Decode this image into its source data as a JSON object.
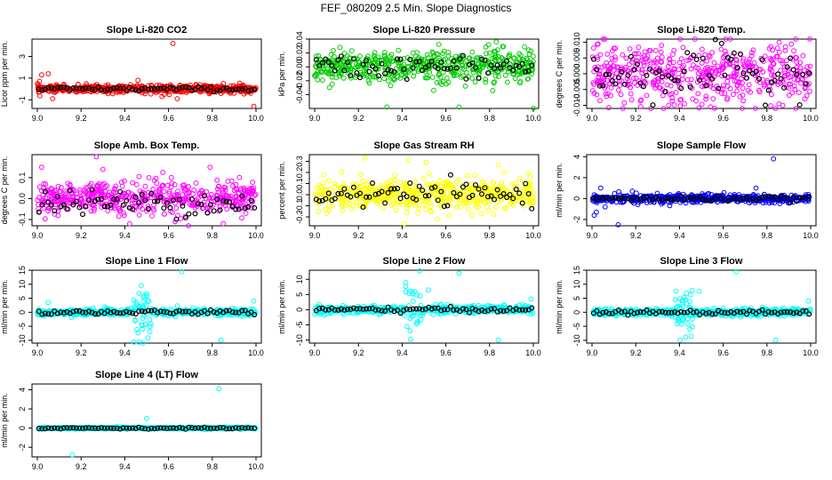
{
  "title": "FEF_080209  2.5 Min. Slope Diagnostics",
  "chart_data": [
    {
      "type": "scatter",
      "title": "Slope Li-820 CO2",
      "ylabel": "Licor ppm per min.",
      "xlim": [
        9.0,
        10.0
      ],
      "ylim": [
        -1.8,
        4.6
      ],
      "xticks": [
        "9.0",
        "9.2",
        "9.4",
        "9.6",
        "9.8",
        "10.0"
      ],
      "yticks": [
        "-1",
        "1",
        "3"
      ],
      "series": [
        {
          "name": "slope",
          "color": "#ff0000",
          "center": 0,
          "spread": 0.18
        },
        {
          "name": "selected",
          "color": "#000000",
          "center": 0,
          "spread": 0.1
        }
      ],
      "outliers": [
        [
          9.01,
          0.7
        ],
        [
          9.02,
          1.3
        ],
        [
          9.05,
          1.4
        ],
        [
          9.07,
          -0.9
        ],
        [
          9.46,
          0.8
        ],
        [
          9.57,
          -0.7
        ],
        [
          9.58,
          -0.5
        ],
        [
          9.62,
          4.2
        ],
        [
          9.64,
          -0.9
        ],
        [
          9.99,
          -1.6
        ]
      ]
    },
    {
      "type": "scatter",
      "title": "Slope Li-820 Pressure",
      "ylabel": "kPa per min.",
      "xlim": [
        9.0,
        10.0
      ],
      "ylim": [
        -0.06,
        0.04
      ],
      "xticks": [
        "9.0",
        "9.2",
        "9.4",
        "9.6",
        "9.8",
        "10.0"
      ],
      "yticks": [
        "-0.04",
        "-0.02",
        "0.00",
        "0.02",
        "0.04"
      ],
      "series": [
        {
          "name": "slope",
          "color": "#00cc00",
          "center": 0.0,
          "spread": 0.012
        },
        {
          "name": "selected",
          "color": "#000000",
          "center": 0.0,
          "spread": 0.008
        }
      ],
      "outliers": [
        [
          9.33,
          -0.058
        ],
        [
          9.66,
          -0.058
        ],
        [
          9.83,
          0.036
        ],
        [
          10.0,
          -0.06
        ]
      ]
    },
    {
      "type": "scatter",
      "title": "Slope Li-820 Temp.",
      "ylabel": "degrees C per min.",
      "xlim": [
        9.0,
        10.0
      ],
      "ylim": [
        -0.011,
        0.011
      ],
      "xticks": [
        "9.0",
        "9.2",
        "9.4",
        "9.6",
        "9.8",
        "10.0"
      ],
      "yticks": [
        "-0.010",
        "-0.005",
        "0.000",
        "0.005",
        "0.010"
      ],
      "series": [
        {
          "name": "slope",
          "color": "#ff00ff",
          "center": 0.0,
          "spread": 0.005
        },
        {
          "name": "selected",
          "color": "#000000",
          "center": 0.0,
          "spread": 0.004
        }
      ],
      "outliers": []
    },
    {
      "type": "scatter",
      "title": "Slope Amb. Box Temp.",
      "ylabel": "degrees C per min.",
      "xlim": [
        9.0,
        10.0
      ],
      "ylim": [
        -0.13,
        0.21
      ],
      "xticks": [
        "9.0",
        "9.2",
        "9.4",
        "9.6",
        "9.8",
        "10.0"
      ],
      "yticks": [
        "-0.1",
        "0.0",
        "0.1"
      ],
      "series": [
        {
          "name": "slope",
          "color": "#ff00ff",
          "center": 0.0,
          "spread": 0.04
        },
        {
          "name": "selected",
          "color": "#000000",
          "center": -0.02,
          "spread": 0.03
        }
      ],
      "outliers": [
        [
          9.02,
          0.15
        ],
        [
          9.27,
          0.2
        ],
        [
          9.3,
          0.14
        ],
        [
          9.63,
          -0.11
        ],
        [
          9.79,
          0.15
        ],
        [
          9.85,
          -0.12
        ]
      ]
    },
    {
      "type": "scatter",
      "title": "Slope Gas Stream RH",
      "ylabel": "percent per min.",
      "xlim": [
        9.0,
        10.0
      ],
      "ylim": [
        -0.28,
        0.36
      ],
      "xticks": [
        "9.0",
        "9.2",
        "9.4",
        "9.6",
        "9.8",
        "10.0"
      ],
      "yticks": [
        "-0.2",
        "-0.1",
        "0.0",
        "0.1",
        "0.2",
        "0.3"
      ],
      "series": [
        {
          "name": "slope",
          "color": "#ffff00",
          "center": 0.0,
          "spread": 0.07
        },
        {
          "name": "selected",
          "color": "#000000",
          "center": 0.0,
          "spread": 0.05
        }
      ],
      "outliers": [
        [
          9.23,
          0.33
        ],
        [
          9.43,
          0.31
        ],
        [
          9.51,
          0.29
        ],
        [
          9.41,
          -0.26
        ],
        [
          9.56,
          -0.22
        ]
      ]
    },
    {
      "type": "scatter",
      "title": "Slope Sample Flow",
      "ylabel": "ml/min per min.",
      "xlim": [
        9.0,
        10.0
      ],
      "ylim": [
        -2.6,
        4.2
      ],
      "xticks": [
        "9.0",
        "9.2",
        "9.4",
        "9.6",
        "9.8",
        "10.0"
      ],
      "yticks": [
        "-2",
        "0",
        "2",
        "4"
      ],
      "series": [
        {
          "name": "slope",
          "color": "#0000ff",
          "center": 0.0,
          "spread": 0.2
        },
        {
          "name": "selected",
          "color": "#000000",
          "center": 0.0,
          "spread": 0.12
        }
      ],
      "outliers": [
        [
          9.01,
          -1.6
        ],
        [
          9.02,
          -1.3
        ],
        [
          9.04,
          1.0
        ],
        [
          9.06,
          -0.8
        ],
        [
          9.12,
          -2.5
        ],
        [
          9.75,
          1.0
        ],
        [
          9.83,
          3.8
        ]
      ]
    },
    {
      "type": "scatter",
      "title": "Slope Line 1 Flow",
      "ylabel": "ml/min per min.",
      "xlim": [
        9.0,
        10.0
      ],
      "ylim": [
        -11,
        15
      ],
      "xticks": [
        "9.0",
        "9.2",
        "9.4",
        "9.6",
        "9.8",
        "10.0"
      ],
      "yticks": [
        "-10",
        "-5",
        "0",
        "5",
        "10",
        "15"
      ],
      "series": [
        {
          "name": "slope",
          "color": "#00ffff",
          "center": 0.0,
          "spread": 0.6
        },
        {
          "name": "selected",
          "color": "#000000",
          "center": 0.0,
          "spread": 0.4
        }
      ],
      "burst": {
        "x": 9.48,
        "width": 0.04,
        "spread": 4.5
      },
      "outliers": [
        [
          9.05,
          3.5
        ],
        [
          9.66,
          14.5
        ],
        [
          9.84,
          -10.0
        ],
        [
          9.99,
          4.0
        ]
      ]
    },
    {
      "type": "scatter",
      "title": "Slope Line 2 Flow",
      "ylabel": "ml/min per min.",
      "xlim": [
        9.0,
        10.0
      ],
      "ylim": [
        -11,
        13
      ],
      "xticks": [
        "9.0",
        "9.2",
        "9.4",
        "9.6",
        "9.8",
        "10.0"
      ],
      "yticks": [
        "-10",
        "-5",
        "0",
        "5",
        "10"
      ],
      "series": [
        {
          "name": "slope",
          "color": "#00ffff",
          "center": 0.0,
          "spread": 0.6
        },
        {
          "name": "selected",
          "color": "#000000",
          "center": 0.0,
          "spread": 0.4
        }
      ],
      "burst": {
        "x": 9.45,
        "width": 0.04,
        "spread": 4.0
      },
      "outliers": [
        [
          9.52,
          6.5
        ],
        [
          9.66,
          12.0
        ],
        [
          9.84,
          -10.0
        ],
        [
          9.99,
          3.5
        ]
      ]
    },
    {
      "type": "scatter",
      "title": "Slope Line 3 Flow",
      "ylabel": "ml/min per min.",
      "xlim": [
        9.0,
        10.0
      ],
      "ylim": [
        -11,
        15
      ],
      "xticks": [
        "9.0",
        "9.2",
        "9.4",
        "9.6",
        "9.8",
        "10.0"
      ],
      "yticks": [
        "-10",
        "-5",
        "0",
        "5",
        "10",
        "15"
      ],
      "series": [
        {
          "name": "slope",
          "color": "#00ffff",
          "center": 0.0,
          "spread": 0.6
        },
        {
          "name": "selected",
          "color": "#000000",
          "center": 0.0,
          "spread": 0.4
        }
      ],
      "burst": {
        "x": 9.42,
        "width": 0.04,
        "spread": 4.0
      },
      "outliers": [
        [
          9.49,
          7.5
        ],
        [
          9.66,
          14.5
        ],
        [
          9.84,
          -10.0
        ],
        [
          9.99,
          4.0
        ]
      ]
    },
    {
      "type": "scatter",
      "title": "Slope Line 4 (LT) Flow",
      "ylabel": "ml/min per min.",
      "xlim": [
        9.0,
        10.0
      ],
      "ylim": [
        -3.0,
        4.6
      ],
      "xticks": [
        "9.0",
        "9.2",
        "9.4",
        "9.6",
        "9.8",
        "10.0"
      ],
      "yticks": [
        "-2",
        "0",
        "2",
        "4"
      ],
      "series": [
        {
          "name": "slope",
          "color": "#00ffff",
          "center": 0.0,
          "spread": 0.05
        },
        {
          "name": "selected",
          "color": "#000000",
          "center": 0.0,
          "spread": 0.04
        }
      ],
      "outliers": [
        [
          9.16,
          -2.8
        ],
        [
          9.5,
          1.0
        ],
        [
          9.83,
          4.1
        ]
      ]
    }
  ]
}
